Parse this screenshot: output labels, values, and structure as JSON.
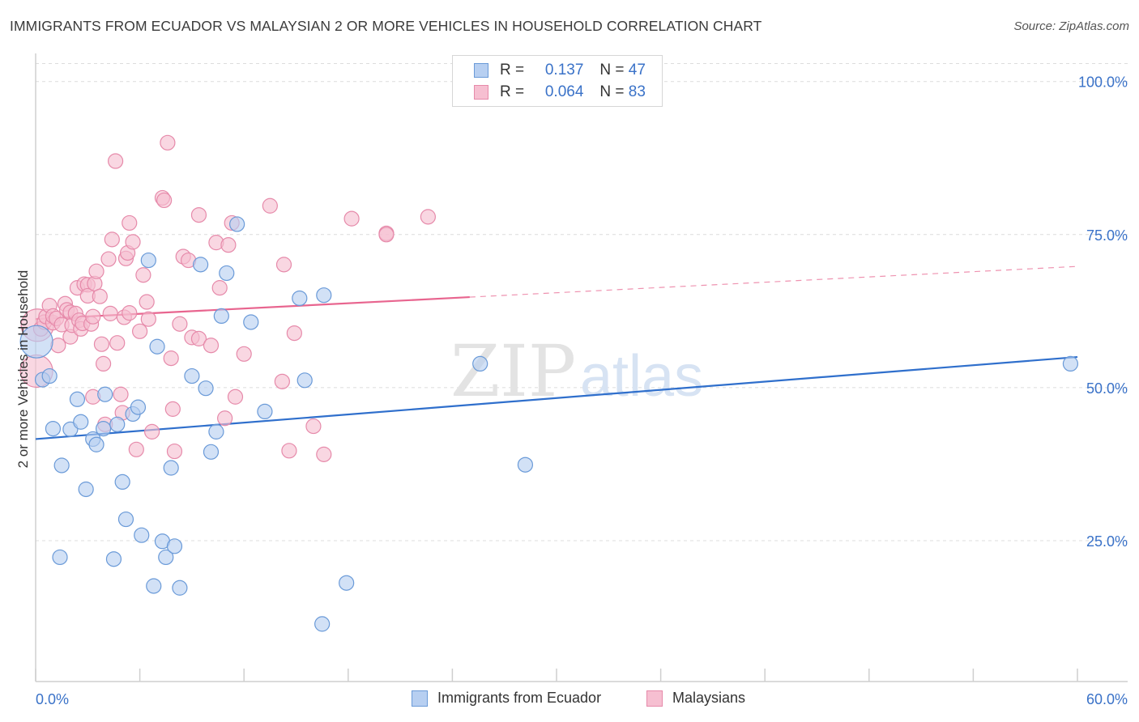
{
  "title": "IMMIGRANTS FROM ECUADOR VS MALAYSIAN 2 OR MORE VEHICLES IN HOUSEHOLD CORRELATION CHART",
  "source": "Source: ZipAtlas.com",
  "watermark": {
    "zip": "ZIP",
    "atlas": "atlas"
  },
  "legend_top": {
    "rows": [
      {
        "r_label": "R =",
        "r_value": "0.137",
        "n_label": "N =",
        "n_value": "47"
      },
      {
        "r_label": "R =",
        "r_value": "0.064",
        "n_label": "N =",
        "n_value": "83"
      }
    ]
  },
  "colors": {
    "blue_fill": "#b7cff1",
    "blue_stroke": "#6a9ad8",
    "blue_line": "#2f6fcc",
    "pink_fill": "#f6bfd1",
    "pink_stroke": "#e68aaa",
    "pink_line": "#e8658f",
    "axis_text": "#3a72c8",
    "grid": "#dcdcdc"
  },
  "chart_data": {
    "type": "scatter",
    "title": "IMMIGRANTS FROM ECUADOR VS MALAYSIAN 2 OR MORE VEHICLES IN HOUSEHOLD CORRELATION CHART",
    "xlabel": "",
    "ylabel": "2 or more Vehicles in Household",
    "xlim": [
      0,
      60
    ],
    "ylim": [
      2,
      103
    ],
    "x_tick_labels": [
      "0.0%",
      "60.0%"
    ],
    "y_ticks": [
      25,
      50,
      75,
      100
    ],
    "y_tick_labels": [
      "25.0%",
      "50.0%",
      "75.0%",
      "100.0%"
    ],
    "grid": true,
    "legend": "top-center and bottom",
    "series": [
      {
        "name": "Immigrants from Ecuador",
        "color": "#6a9ad8",
        "trend": {
          "x": [
            0,
            60
          ],
          "y": [
            41.6,
            55.0
          ],
          "dashed_from": null
        },
        "points": [
          [
            0.05,
            57.5
          ],
          [
            0.4,
            51.3
          ],
          [
            0.8,
            51.9
          ],
          [
            1.0,
            43.3
          ],
          [
            1.5,
            37.3
          ],
          [
            1.4,
            22.3
          ],
          [
            2.0,
            43.2
          ],
          [
            2.4,
            48.1
          ],
          [
            2.6,
            44.4
          ],
          [
            2.9,
            33.4
          ],
          [
            3.3,
            41.6
          ],
          [
            3.5,
            40.7
          ],
          [
            3.9,
            43.3
          ],
          [
            4.0,
            48.9
          ],
          [
            4.5,
            22.0
          ],
          [
            4.7,
            44.0
          ],
          [
            5.0,
            34.6
          ],
          [
            5.2,
            28.5
          ],
          [
            5.6,
            45.7
          ],
          [
            5.9,
            46.8
          ],
          [
            6.1,
            25.9
          ],
          [
            6.5,
            70.8
          ],
          [
            6.8,
            17.6
          ],
          [
            7.0,
            56.7
          ],
          [
            7.3,
            24.9
          ],
          [
            7.5,
            22.3
          ],
          [
            7.8,
            36.9
          ],
          [
            8.0,
            24.1
          ],
          [
            8.3,
            17.3
          ],
          [
            9.0,
            51.9
          ],
          [
            9.5,
            70.1
          ],
          [
            9.8,
            49.9
          ],
          [
            10.1,
            39.5
          ],
          [
            10.4,
            42.8
          ],
          [
            10.7,
            61.7
          ],
          [
            11.0,
            68.7
          ],
          [
            11.6,
            76.7
          ],
          [
            12.4,
            60.7
          ],
          [
            13.2,
            46.1
          ],
          [
            15.2,
            64.6
          ],
          [
            15.5,
            51.2
          ],
          [
            16.5,
            11.4
          ],
          [
            16.6,
            65.1
          ],
          [
            17.9,
            18.1
          ],
          [
            25.6,
            53.9
          ],
          [
            28.2,
            37.4
          ],
          [
            59.6,
            53.9
          ]
        ]
      },
      {
        "name": "Malaysians",
        "color": "#e68aaa",
        "trend": {
          "x": [
            0,
            60
          ],
          "y": [
            61.2,
            69.8
          ],
          "dashed_from": 25
        }
      }
    ],
    "series_2_points": [
      [
        0.05,
        52.7
      ],
      [
        0.1,
        60.2
      ],
      [
        0.3,
        59.6
      ],
      [
        0.5,
        60.7
      ],
      [
        0.6,
        61.6
      ],
      [
        0.8,
        63.4
      ],
      [
        1.0,
        60.6
      ],
      [
        1.0,
        61.7
      ],
      [
        1.2,
        61.3
      ],
      [
        1.3,
        56.9
      ],
      [
        1.5,
        60.3
      ],
      [
        1.7,
        63.7
      ],
      [
        1.8,
        62.7
      ],
      [
        2.0,
        62.3
      ],
      [
        2.0,
        58.3
      ],
      [
        2.1,
        60.2
      ],
      [
        2.3,
        62.1
      ],
      [
        2.4,
        66.3
      ],
      [
        2.5,
        61.0
      ],
      [
        2.6,
        59.6
      ],
      [
        2.7,
        60.5
      ],
      [
        2.8,
        66.9
      ],
      [
        3.0,
        66.8
      ],
      [
        3.0,
        65.0
      ],
      [
        3.2,
        60.4
      ],
      [
        3.3,
        48.5
      ],
      [
        3.3,
        61.6
      ],
      [
        3.4,
        67.0
      ],
      [
        3.5,
        69.0
      ],
      [
        3.7,
        64.9
      ],
      [
        3.8,
        57.1
      ],
      [
        3.9,
        53.9
      ],
      [
        4.0,
        44.0
      ],
      [
        4.2,
        71.0
      ],
      [
        4.3,
        62.1
      ],
      [
        4.4,
        74.2
      ],
      [
        4.6,
        87.0
      ],
      [
        4.7,
        57.3
      ],
      [
        4.9,
        48.9
      ],
      [
        5.0,
        45.9
      ],
      [
        5.1,
        61.5
      ],
      [
        5.2,
        71.1
      ],
      [
        5.3,
        72.0
      ],
      [
        5.4,
        62.2
      ],
      [
        5.4,
        76.9
      ],
      [
        5.6,
        73.8
      ],
      [
        5.8,
        39.9
      ],
      [
        6.0,
        59.2
      ],
      [
        6.2,
        68.4
      ],
      [
        6.4,
        64.0
      ],
      [
        6.5,
        61.2
      ],
      [
        6.7,
        42.8
      ],
      [
        7.3,
        81.0
      ],
      [
        7.4,
        80.6
      ],
      [
        7.6,
        90.0
      ],
      [
        7.8,
        54.8
      ],
      [
        7.9,
        46.5
      ],
      [
        8.0,
        39.6
      ],
      [
        8.3,
        60.4
      ],
      [
        8.5,
        71.4
      ],
      [
        8.8,
        70.8
      ],
      [
        9.0,
        58.2
      ],
      [
        9.4,
        58.0
      ],
      [
        9.4,
        78.2
      ],
      [
        10.1,
        56.9
      ],
      [
        10.4,
        73.7
      ],
      [
        10.6,
        66.3
      ],
      [
        10.9,
        45.0
      ],
      [
        11.1,
        73.3
      ],
      [
        11.3,
        76.9
      ],
      [
        11.5,
        48.5
      ],
      [
        12.0,
        55.5
      ],
      [
        13.5,
        79.7
      ],
      [
        14.2,
        51.0
      ],
      [
        14.3,
        70.1
      ],
      [
        14.6,
        39.7
      ],
      [
        14.9,
        58.9
      ],
      [
        16.0,
        43.7
      ],
      [
        16.6,
        39.1
      ],
      [
        18.2,
        77.6
      ],
      [
        20.2,
        75.2
      ],
      [
        22.6,
        77.9
      ],
      [
        20.2,
        75.0
      ]
    ]
  },
  "legend_bottom": [
    {
      "label": "Immigrants from Ecuador"
    },
    {
      "label": "Malaysians"
    }
  ]
}
